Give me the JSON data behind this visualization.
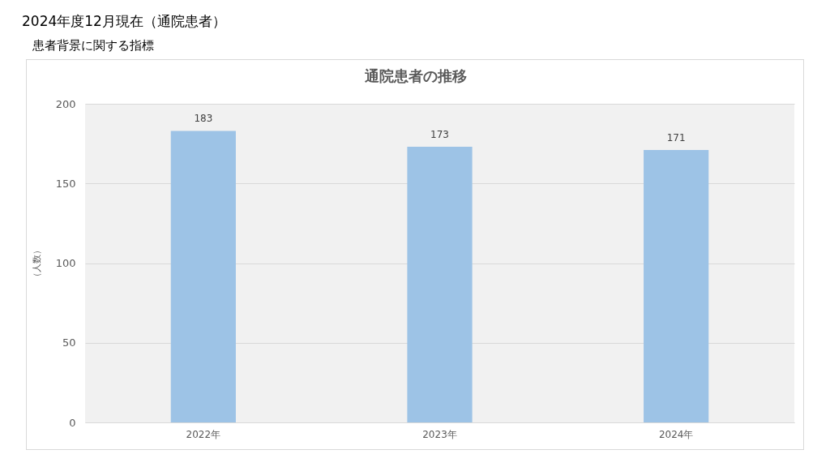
{
  "chart_data": {
    "type": "bar",
    "title": "通院患者の推移",
    "ylabel": "（人数）",
    "annotations": [
      "2024年度12月現在（通院患者）",
      "患者背景に関する指標"
    ],
    "categories": [
      "2022年",
      "2023年",
      "2024年"
    ],
    "values": [
      183,
      173,
      171
    ],
    "color": "#9dc3e6",
    "ylim": [
      0,
      200
    ],
    "yticks": [
      0,
      50,
      100,
      150,
      200
    ],
    "grid": "y",
    "data_labels": true
  }
}
